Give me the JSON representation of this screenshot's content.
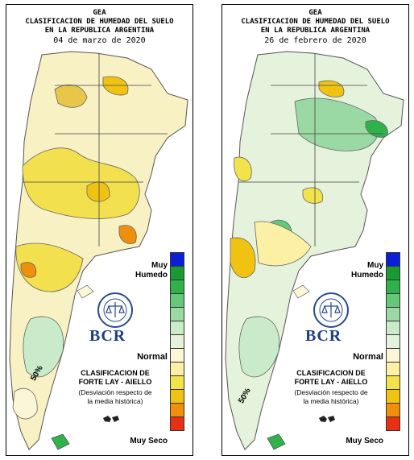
{
  "panels": [
    {
      "title": "GEA",
      "subtitle1": "CLASIFICACION DE HUMEDAD DEL SUELO",
      "subtitle2": "EN LA REPUBLICA ARGENTINA",
      "date": "04 de marzo de 2020",
      "percent_label": "50%"
    },
    {
      "title": "GEA",
      "subtitle1": "CLASIFICACION DE HUMEDAD DEL SUELO",
      "subtitle2": "EN LA REPUBLICA ARGENTINA",
      "date": "26 de febrero de 2020",
      "percent_label": "50%"
    }
  ],
  "legend": {
    "top_label": "Muy Humedo",
    "middle_label": "Normal",
    "bottom_label": "Muy Seco",
    "colors": [
      "#0b1ed8",
      "#1a9a33",
      "#2fb24c",
      "#63c878",
      "#9ad9a3",
      "#c9ebc9",
      "#e5f2dc",
      "#fbf7d6",
      "#fbf0a4",
      "#f3e34a",
      "#f0c313",
      "#ef8f0c",
      "#e83114"
    ]
  },
  "brand": {
    "name": "BCR",
    "classification_title": "CLASIFICACION DE",
    "classification_authors": "FORTE LAY - AIELLO",
    "note_line1": "(Desviación respecto de",
    "note_line2": "la media histórica)"
  }
}
